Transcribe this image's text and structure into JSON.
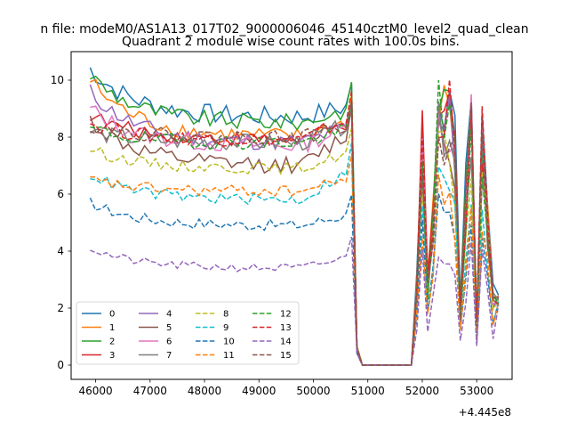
{
  "figure": {
    "suptitle": "n file: modeM0/AS1A13_017T02_9000006046_45140cztM0_level2_quad_clean",
    "title": "Quadrant 2 module wise count rates with 100.0s bins.",
    "x_offset_label": "+4.445e8"
  },
  "chart_data": {
    "type": "line",
    "title": "Quadrant 2 module wise count rates with 100.0s bins.",
    "xlabel": "",
    "ylabel": "",
    "x_offset": "+4.445e8",
    "xlim": [
      45550,
      53650
    ],
    "ylim": [
      -0.5,
      11.0
    ],
    "xticks": [
      46000,
      47000,
      48000,
      49000,
      50000,
      51000,
      52000,
      53000
    ],
    "yticks": [
      0,
      2,
      4,
      6,
      8,
      10
    ],
    "grid": false,
    "legend": {
      "placement": "lower-left",
      "columns": 4
    },
    "x_range": {
      "start": 45900,
      "step": 100,
      "count": 76
    },
    "series": [
      {
        "name": "0",
        "color": "#1f77b4",
        "dash": "solid",
        "base": 8.7,
        "start": 10.4,
        "decay": 0.055,
        "end": 9.1,
        "peak": 10.4,
        "noise": 0.35
      },
      {
        "name": "1",
        "color": "#ff7f0e",
        "dash": "solid",
        "base": 8.0,
        "start": 10.0,
        "decay": 0.05,
        "end": 8.6,
        "peak": 9.5,
        "noise": 0.3
      },
      {
        "name": "2",
        "color": "#2ca02c",
        "dash": "solid",
        "base": 8.5,
        "start": 10.2,
        "decay": 0.05,
        "end": 9.0,
        "peak": 9.7,
        "noise": 0.3
      },
      {
        "name": "3",
        "color": "#d62728",
        "dash": "solid",
        "base": 7.9,
        "start": 8.8,
        "decay": 0.05,
        "end": 8.5,
        "peak": 9.3,
        "noise": 0.25
      },
      {
        "name": "4",
        "color": "#9467bd",
        "dash": "solid",
        "base": 7.8,
        "start": 9.6,
        "decay": 0.05,
        "end": 8.4,
        "peak": 8.9,
        "noise": 0.3
      },
      {
        "name": "5",
        "color": "#8c564b",
        "dash": "solid",
        "base": 7.0,
        "start": 8.6,
        "decay": 0.05,
        "end": 8.2,
        "peak": 8.8,
        "noise": 0.3
      },
      {
        "name": "6",
        "color": "#e377c2",
        "dash": "solid",
        "base": 7.7,
        "start": 9.0,
        "decay": 0.05,
        "end": 8.4,
        "peak": 8.9,
        "noise": 0.3
      },
      {
        "name": "7",
        "color": "#7f7f7f",
        "dash": "solid",
        "base": 7.8,
        "start": 8.2,
        "decay": 0.05,
        "end": 8.5,
        "peak": 9.0,
        "noise": 0.3
      },
      {
        "name": "8",
        "color": "#bcbd22",
        "dash": "dashed",
        "base": 6.9,
        "start": 7.6,
        "decay": 0.05,
        "end": 7.5,
        "peak": 7.8,
        "noise": 0.2
      },
      {
        "name": "9",
        "color": "#17becf",
        "dash": "dashed",
        "base": 5.8,
        "start": 6.7,
        "decay": 0.05,
        "end": 6.9,
        "peak": 6.5,
        "noise": 0.2
      },
      {
        "name": "10",
        "color": "#1f77b4",
        "dash": "dashed",
        "base": 4.9,
        "start": 5.7,
        "decay": 0.05,
        "end": 5.3,
        "peak": 5.5,
        "noise": 0.2
      },
      {
        "name": "11",
        "color": "#ff7f0e",
        "dash": "dashed",
        "base": 6.1,
        "start": 6.5,
        "decay": 0.05,
        "end": 6.6,
        "peak": 6.0,
        "noise": 0.2
      },
      {
        "name": "12",
        "color": "#2ca02c",
        "dash": "dashed",
        "base": 7.8,
        "start": 8.3,
        "decay": 0.05,
        "end": 8.3,
        "peak": 8.8,
        "noise": 0.25
      },
      {
        "name": "13",
        "color": "#d62728",
        "dash": "dashed",
        "base": 7.9,
        "start": 8.5,
        "decay": 0.05,
        "end": 8.7,
        "peak": 9.3,
        "noise": 0.25
      },
      {
        "name": "14",
        "color": "#9467bd",
        "dash": "dashed",
        "base": 3.4,
        "start": 4.1,
        "decay": 0.05,
        "end": 3.8,
        "peak": 4.3,
        "noise": 0.15
      },
      {
        "name": "15",
        "color": "#8c564b",
        "dash": "dashed",
        "base": 8.0,
        "start": 8.4,
        "decay": 0.05,
        "end": 8.4,
        "peak": 8.9,
        "noise": 0.25
      }
    ],
    "profile": {
      "drop_start": 50700,
      "zero_start": 50900,
      "zero_end": 51800,
      "rise": [
        [
          51900,
          0.3
        ],
        [
          52000,
          0.85
        ],
        [
          52100,
          0.3
        ],
        [
          52200,
          0.55
        ],
        [
          52300,
          1.0
        ],
        [
          52400,
          0.92
        ],
        [
          52500,
          0.95
        ],
        [
          52600,
          0.8
        ],
        [
          52700,
          0.2
        ],
        [
          52800,
          0.6
        ],
        [
          52900,
          0.95
        ],
        [
          53000,
          0.15
        ],
        [
          53100,
          0.85
        ],
        [
          53200,
          0.55
        ],
        [
          53300,
          0.25
        ]
      ]
    }
  }
}
